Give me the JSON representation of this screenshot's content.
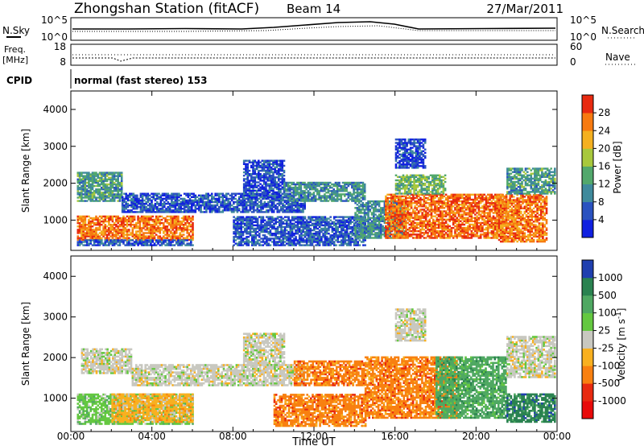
{
  "header": {
    "station": "Zhongshan Station (fitACF)",
    "beam": "Beam 14",
    "date": "27/Mar/2011"
  },
  "strips": {
    "nsky_label": "N.Sky",
    "nsearch_label": "N.Search",
    "freq_label_1": "Freq.",
    "freq_label_2": "[MHz]",
    "nave_label": "Nave",
    "cpid_label": "CPID",
    "cpid_value": "normal (fast stereo) 153",
    "noise_ticks_left": [
      "10^5",
      "10^0"
    ],
    "noise_ticks_right": [
      "10^5",
      "10^0"
    ],
    "freq_ticks": [
      "18",
      "8"
    ],
    "nave_ticks": [
      "60",
      "0"
    ]
  },
  "xaxis": {
    "title": "Time UT",
    "ticks": [
      "00:00",
      "04:00",
      "08:00",
      "12:00",
      "16:00",
      "20:00",
      "00:00"
    ]
  },
  "chart_data": [
    {
      "type": "heatmap",
      "panel": "power",
      "x": [
        0,
        24
      ],
      "ylabel": "Slant Range [km]",
      "ylim": [
        180,
        4500
      ],
      "yticks": [
        1000,
        2000,
        3000,
        4000
      ],
      "colorbar": {
        "label": "Power [dB]",
        "range": [
          0,
          32
        ],
        "ticks": [
          "4",
          "8",
          "12",
          "16",
          "20",
          "24",
          "28"
        ],
        "colors": [
          "#1020e0",
          "#2a52c0",
          "#3f8a9c",
          "#52a86c",
          "#a8c83c",
          "#f4b020",
          "#f77a10",
          "#e82a10"
        ]
      },
      "regions": [
        {
          "t": [
            0.3,
            6.0
          ],
          "r": [
            450,
            1100
          ],
          "level": 26
        },
        {
          "t": [
            0.3,
            6.0
          ],
          "r": [
            300,
            450
          ],
          "level": 6
        },
        {
          "t": [
            0.3,
            2.5
          ],
          "r": [
            1500,
            2300
          ],
          "level": 12
        },
        {
          "t": [
            2.5,
            11.5
          ],
          "r": [
            1200,
            1700
          ],
          "level": 6
        },
        {
          "t": [
            8.5,
            10.5
          ],
          "r": [
            1600,
            2600
          ],
          "level": 5
        },
        {
          "t": [
            8.0,
            14.5
          ],
          "r": [
            300,
            1100
          ],
          "level": 6
        },
        {
          "t": [
            10.5,
            14.5
          ],
          "r": [
            1500,
            2000
          ],
          "level": 11
        },
        {
          "t": [
            14.0,
            16.5
          ],
          "r": [
            500,
            1500
          ],
          "level": 11
        },
        {
          "t": [
            15.5,
            21.5
          ],
          "r": [
            500,
            1700
          ],
          "level": 27
        },
        {
          "t": [
            16.0,
            18.5
          ],
          "r": [
            1700,
            2200
          ],
          "level": 15
        },
        {
          "t": [
            21.0,
            23.5
          ],
          "r": [
            400,
            1700
          ],
          "level": 26
        },
        {
          "t": [
            21.5,
            23.9
          ],
          "r": [
            1700,
            2400
          ],
          "level": 12
        },
        {
          "t": [
            16.0,
            17.5
          ],
          "r": [
            2400,
            3200
          ],
          "level": 5
        }
      ]
    },
    {
      "type": "heatmap",
      "panel": "velocity",
      "x": [
        0,
        24
      ],
      "ylabel": "Slant Range [km]",
      "ylim": [
        180,
        4500
      ],
      "yticks": [
        1000,
        2000,
        3000,
        4000
      ],
      "colorbar": {
        "label": "Velocity [m s^-1]",
        "ticks": [
          "1000",
          "500",
          "100",
          "25",
          "-25",
          "-100",
          "-500",
          "-1000"
        ],
        "colors": [
          "#1f3faf",
          "#2a8250",
          "#4fa862",
          "#64c840",
          "#c8c8c0",
          "#f8b020",
          "#f88010",
          "#e82a10",
          "#e80a0a"
        ]
      },
      "regions": [
        {
          "t": [
            0.3,
            6.0
          ],
          "r": [
            350,
            1100
          ],
          "cls": 3
        },
        {
          "t": [
            0.5,
            3.0
          ],
          "r": [
            1600,
            2200
          ],
          "cls": 4
        },
        {
          "t": [
            2.0,
            6.0
          ],
          "r": [
            400,
            1100
          ],
          "cls": 5
        },
        {
          "t": [
            3.0,
            11.5
          ],
          "r": [
            1300,
            1800
          ],
          "cls": 4
        },
        {
          "t": [
            8.5,
            10.5
          ],
          "r": [
            1800,
            2600
          ],
          "cls": 4
        },
        {
          "t": [
            10.0,
            14.5
          ],
          "r": [
            300,
            1100
          ],
          "cls": 6
        },
        {
          "t": [
            11.0,
            14.5
          ],
          "r": [
            1300,
            1900
          ],
          "cls": 6
        },
        {
          "t": [
            14.5,
            19.0
          ],
          "r": [
            500,
            2000
          ],
          "cls": 6
        },
        {
          "t": [
            18.0,
            21.5
          ],
          "r": [
            500,
            2000
          ],
          "cls": 2
        },
        {
          "t": [
            21.5,
            23.9
          ],
          "r": [
            400,
            1100
          ],
          "cls": 1
        },
        {
          "t": [
            21.5,
            23.9
          ],
          "r": [
            1500,
            2500
          ],
          "cls": 4
        },
        {
          "t": [
            16.0,
            17.5
          ],
          "r": [
            2400,
            3200
          ],
          "cls": 4
        }
      ]
    }
  ]
}
